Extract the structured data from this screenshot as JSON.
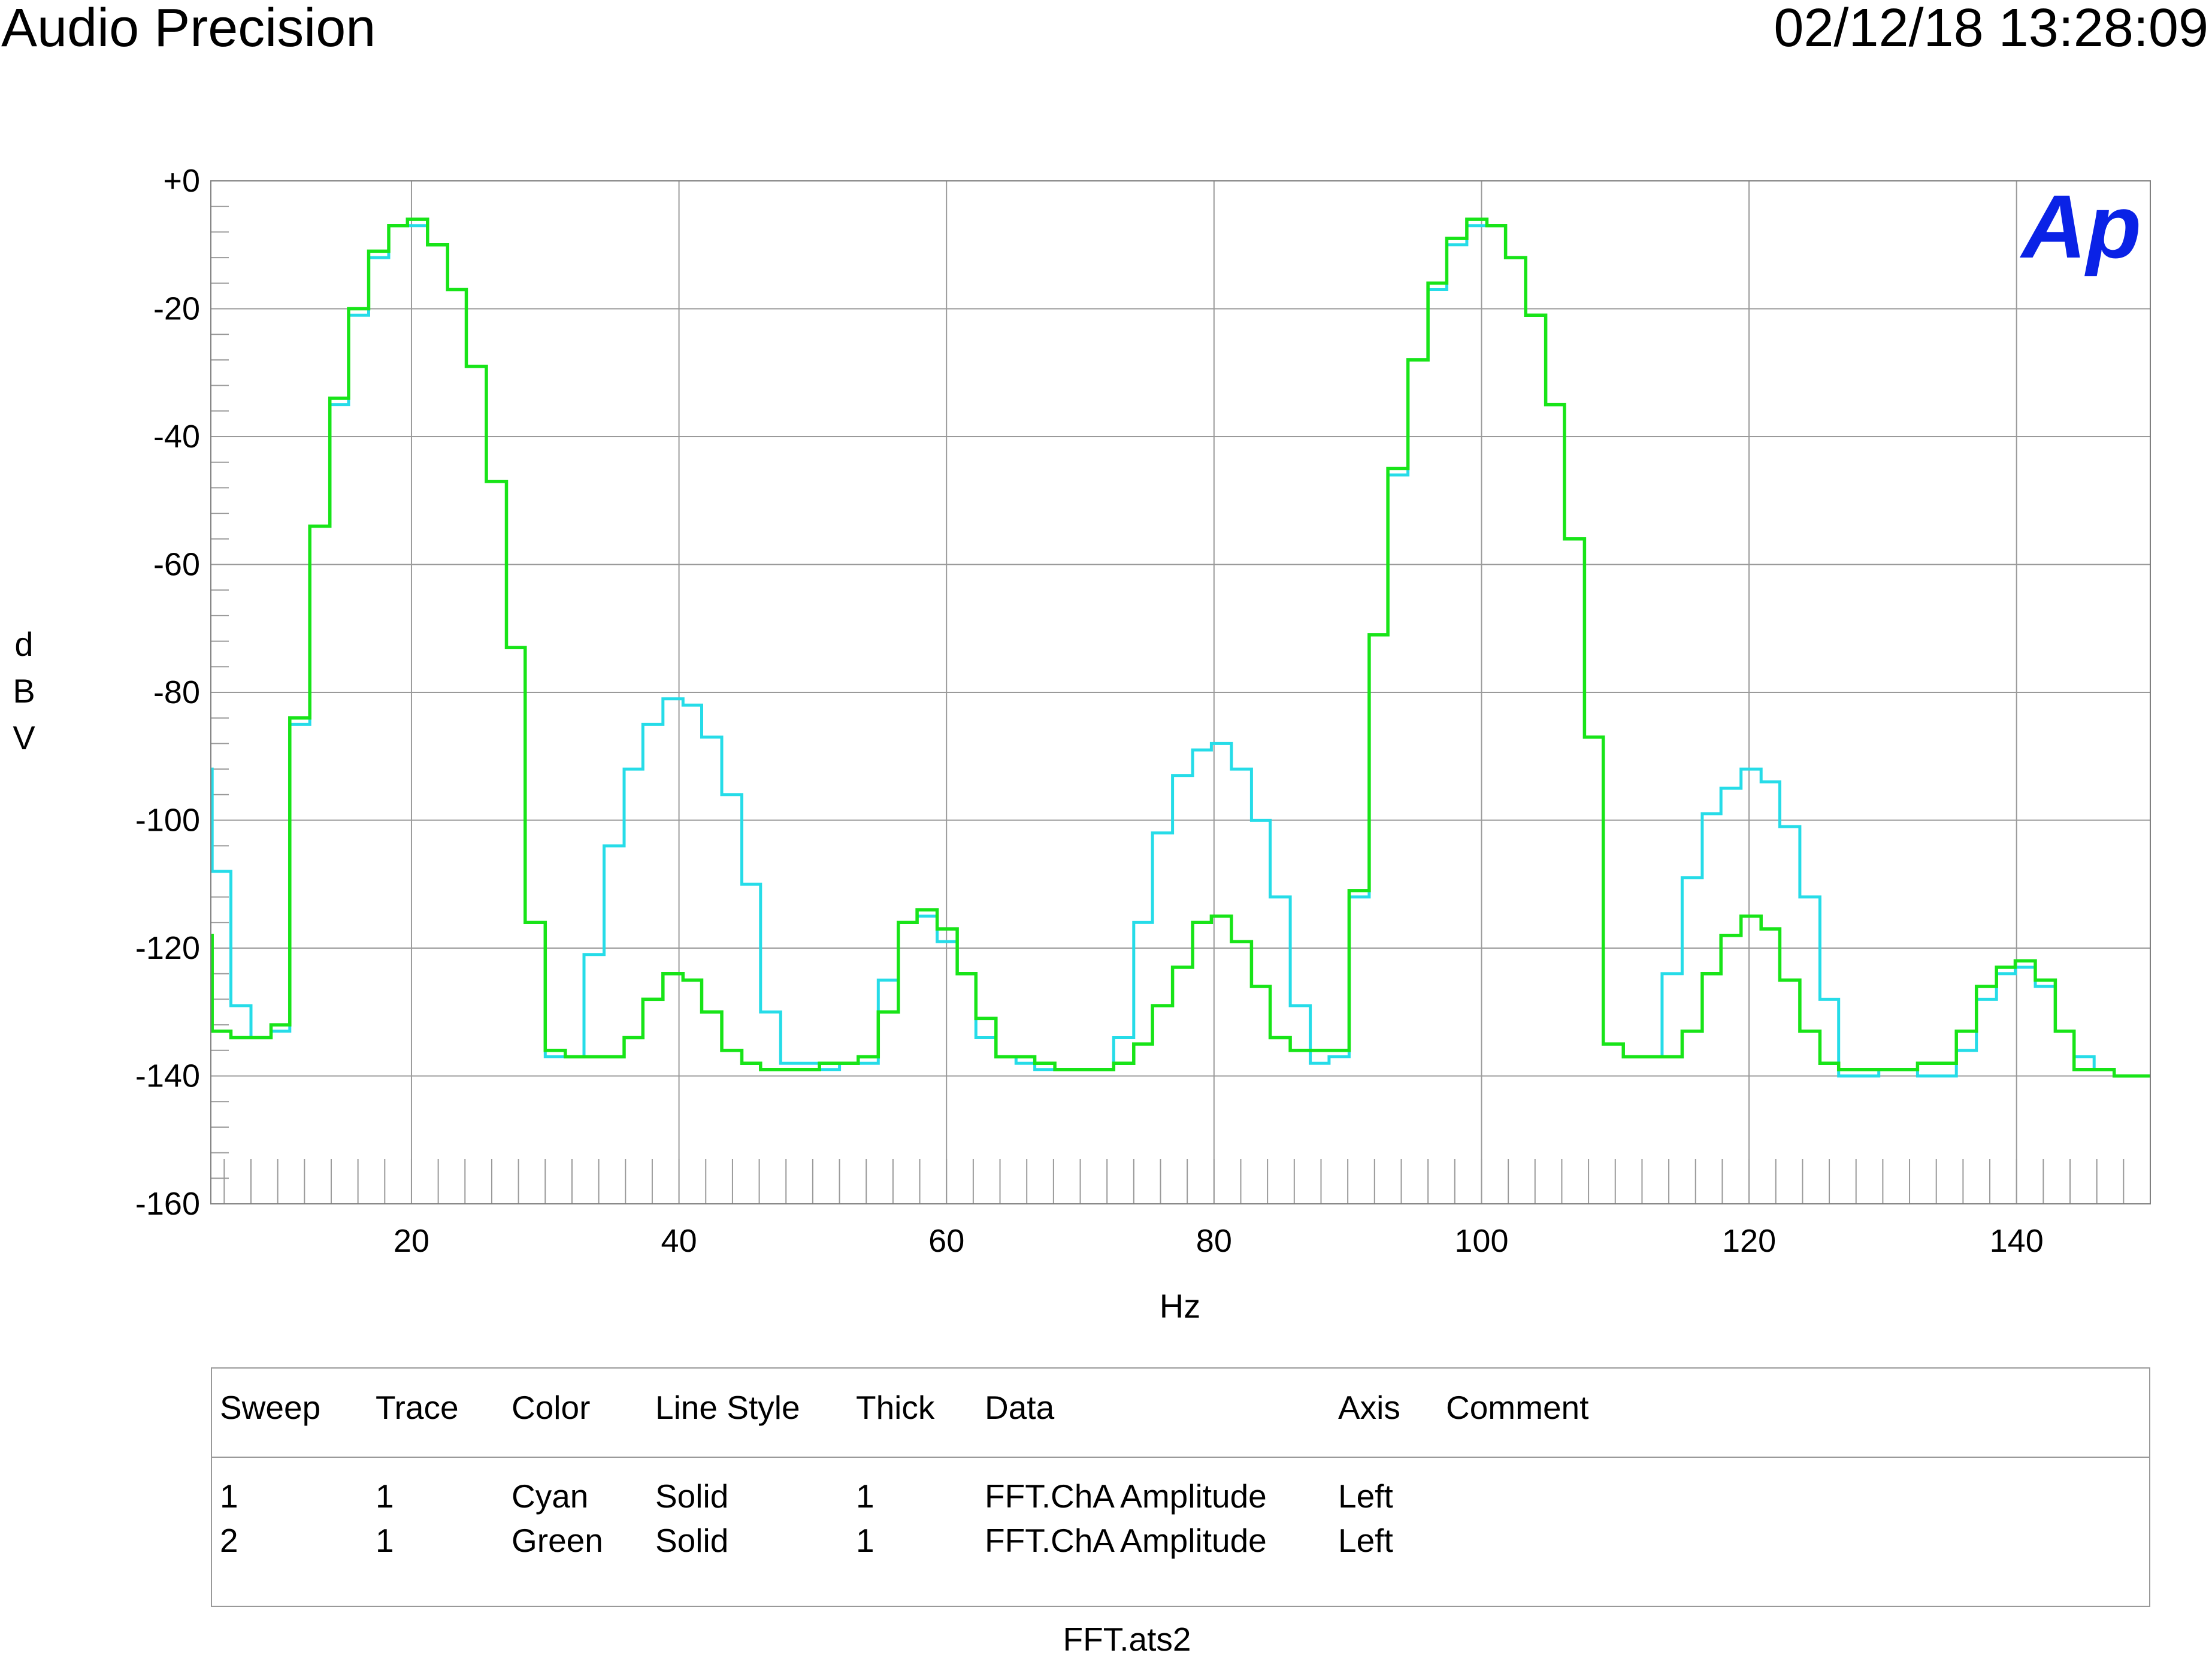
{
  "header": {
    "title": "Audio Precision",
    "timestamp": "02/12/18 13:28:09"
  },
  "logo": {
    "text": "Ap",
    "color": "#0a22e6"
  },
  "chart_data": {
    "type": "line",
    "style": "step",
    "xlabel": "Hz",
    "ylabel": [
      "d",
      "B",
      "V"
    ],
    "xlim": [
      5,
      150
    ],
    "ylim": [
      -160,
      0
    ],
    "yticks": [
      0,
      -20,
      -40,
      -60,
      -80,
      -100,
      -120,
      -140,
      -160
    ],
    "ytick_labels": [
      "+0",
      "-20",
      "-40",
      "-60",
      "-80",
      "-100",
      "-120",
      "-140",
      "-160"
    ],
    "xticks": [
      20,
      40,
      60,
      80,
      100,
      120,
      140
    ],
    "xtick_labels": [
      "20",
      "40",
      "60",
      "80",
      "100",
      "120",
      "140"
    ],
    "grid": true,
    "bin_width": 1.465,
    "series": [
      {
        "name": "Sweep 1 Trace 1",
        "color": "#26dce8",
        "x": [
          5.0,
          5.1,
          6.5,
          8.0,
          9.5,
          10.9,
          12.4,
          13.9,
          15.3,
          16.8,
          18.3,
          19.7,
          21.2,
          22.7,
          24.1,
          25.6,
          27.1,
          28.5,
          30.0,
          31.5,
          32.9,
          34.4,
          35.9,
          37.3,
          38.8,
          40.3,
          41.7,
          43.2,
          44.7,
          46.1,
          47.6,
          49.1,
          50.5,
          52.0,
          53.4,
          54.9,
          56.4,
          57.8,
          59.3,
          60.8,
          62.2,
          63.7,
          65.2,
          66.6,
          68.1,
          69.6,
          71.0,
          72.5,
          74.0,
          75.4,
          76.9,
          78.4,
          79.8,
          81.3,
          82.8,
          84.2,
          85.7,
          87.2,
          88.6,
          90.1,
          91.6,
          93.0,
          94.5,
          96.0,
          97.4,
          98.9,
          100.4,
          101.8,
          103.3,
          104.8,
          106.2,
          107.7,
          109.1,
          110.6,
          112.1,
          113.5,
          115.0,
          116.5,
          117.9,
          119.4,
          120.9,
          122.3,
          123.8,
          125.3,
          126.7,
          128.2,
          129.7,
          131.1,
          132.6,
          134.1,
          135.5,
          137.0,
          138.5,
          139.9,
          141.4,
          142.9,
          144.3,
          145.8,
          147.3,
          148.7
        ],
        "values": [
          -92,
          -108,
          -129,
          -134,
          -133,
          -85,
          -54,
          -35,
          -21,
          -12,
          -7,
          -7,
          -10,
          -17,
          -29,
          -47,
          -73,
          -116,
          -137,
          -137,
          -121,
          -104,
          -92,
          -85,
          -81,
          -82,
          -87,
          -96,
          -110,
          -130,
          -138,
          -138,
          -139,
          -138,
          -138,
          -125,
          -116,
          -115,
          -119,
          -124,
          -134,
          -137,
          -138,
          -139,
          -139,
          -139,
          -139,
          -134,
          -116,
          -102,
          -93,
          -89,
          -88,
          -92,
          -100,
          -112,
          -129,
          -138,
          -137,
          -112,
          -71,
          -46,
          -28,
          -17,
          -10,
          -7,
          -7,
          -12,
          -21,
          -35,
          -56,
          -87,
          -135,
          -137,
          -137,
          -124,
          -109,
          -99,
          -95,
          -92,
          -94,
          -101,
          -112,
          -128,
          -140,
          -140,
          -139,
          -139,
          -140,
          -140,
          -136,
          -128,
          -124,
          -123,
          -126,
          -133,
          -137,
          -139,
          -140,
          -140
        ]
      },
      {
        "name": "Sweep 2 Trace 1",
        "color": "#18e418",
        "x": [
          5.0,
          5.1,
          6.5,
          8.0,
          9.5,
          10.9,
          12.4,
          13.9,
          15.3,
          16.8,
          18.3,
          19.7,
          21.2,
          22.7,
          24.1,
          25.6,
          27.1,
          28.5,
          30.0,
          31.5,
          32.9,
          34.4,
          35.9,
          37.3,
          38.8,
          40.3,
          41.7,
          43.2,
          44.7,
          46.1,
          47.6,
          49.1,
          50.5,
          52.0,
          53.4,
          54.9,
          56.4,
          57.8,
          59.3,
          60.8,
          62.2,
          63.7,
          65.2,
          66.6,
          68.1,
          69.6,
          71.0,
          72.5,
          74.0,
          75.4,
          76.9,
          78.4,
          79.8,
          81.3,
          82.8,
          84.2,
          85.7,
          87.2,
          88.6,
          90.1,
          91.6,
          93.0,
          94.5,
          96.0,
          97.4,
          98.9,
          100.4,
          101.8,
          103.3,
          104.8,
          106.2,
          107.7,
          109.1,
          110.6,
          112.1,
          113.5,
          115.0,
          116.5,
          117.9,
          119.4,
          120.9,
          122.3,
          123.8,
          125.3,
          126.7,
          128.2,
          129.7,
          131.1,
          132.6,
          134.1,
          135.5,
          137.0,
          138.5,
          139.9,
          141.4,
          142.9,
          144.3,
          145.8,
          147.3,
          148.7
        ],
        "values": [
          -118,
          -133,
          -134,
          -134,
          -132,
          -84,
          -54,
          -34,
          -20,
          -11,
          -7,
          -6,
          -10,
          -17,
          -29,
          -47,
          -73,
          -116,
          -136,
          -137,
          -137,
          -137,
          -134,
          -128,
          -124,
          -125,
          -130,
          -136,
          -138,
          -139,
          -139,
          -139,
          -138,
          -138,
          -137,
          -130,
          -116,
          -114,
          -117,
          -124,
          -131,
          -137,
          -137,
          -138,
          -139,
          -139,
          -139,
          -138,
          -135,
          -129,
          -123,
          -116,
          -115,
          -119,
          -126,
          -134,
          -136,
          -136,
          -136,
          -111,
          -71,
          -45,
          -28,
          -16,
          -9,
          -6,
          -7,
          -12,
          -21,
          -35,
          -56,
          -87,
          -135,
          -137,
          -137,
          -137,
          -133,
          -124,
          -118,
          -115,
          -117,
          -125,
          -133,
          -138,
          -139,
          -139,
          -139,
          -139,
          -138,
          -138,
          -133,
          -126,
          -123,
          -122,
          -125,
          -133,
          -139,
          -139,
          -140,
          -140
        ]
      }
    ]
  },
  "legend": {
    "headers": [
      "Sweep",
      "Trace",
      "Color",
      "Line Style",
      "Thick",
      "Data",
      "Axis",
      "Comment"
    ],
    "rows": [
      [
        "1",
        "1",
        "Cyan",
        "Solid",
        "1",
        "FFT.ChA Amplitude",
        "Left",
        ""
      ],
      [
        "2",
        "1",
        "Green",
        "Solid",
        "1",
        "FFT.ChA Amplitude",
        "Left",
        ""
      ]
    ]
  },
  "footer": {
    "filename": "FFT.ats2"
  }
}
